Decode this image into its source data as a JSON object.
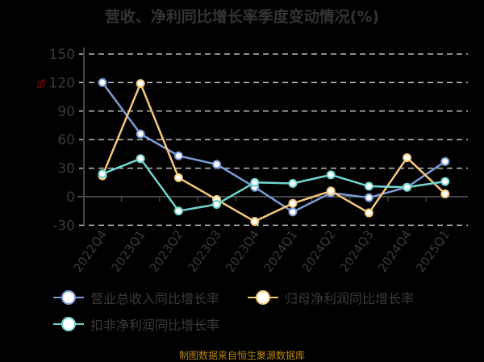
{
  "title": "营收、净利同比增长率季度变动情况(%)",
  "footer": "制图数据来自恒生聚源数据库",
  "colors": {
    "background": "#000000",
    "revenue": "#7b9bd6",
    "net_profit": "#f5c97a",
    "deducted_net_profit": "#6fd6cf",
    "grid": "#bbbbbb",
    "axis_text": "#3a3a3a",
    "unit_label": "#b00000",
    "footer": "#b8860b"
  },
  "chart_data": {
    "type": "line",
    "title": "营收、净利同比增长率季度变动情况(%)",
    "xlabel": "",
    "ylabel": "%",
    "categories": [
      "2022Q4",
      "2023Q1",
      "2023Q2",
      "2023Q3",
      "2023Q4",
      "2024Q1",
      "2024Q2",
      "2024Q3",
      "2024Q4",
      "2025Q1"
    ],
    "yticks": [
      150,
      120,
      90,
      60,
      30,
      0,
      -30
    ],
    "ylim": [
      -30,
      150
    ],
    "grid": true,
    "legend_position": "bottom",
    "series": [
      {
        "name": "营业总收入同比增长率",
        "color": "#7b9bd6",
        "values": [
          120,
          66,
          43,
          34,
          10,
          -16,
          4,
          -1,
          10,
          37
        ]
      },
      {
        "name": "归母净利润同比增长率",
        "color": "#f5c97a",
        "values": [
          22,
          119,
          20,
          -3,
          -26,
          -7,
          6,
          -17,
          41,
          3
        ]
      },
      {
        "name": "扣非净利润同比增长率",
        "color": "#6fd6cf",
        "values": [
          24,
          40,
          -15,
          -8,
          15,
          14,
          23,
          11,
          10,
          16
        ]
      }
    ]
  },
  "legend": {
    "items": [
      {
        "label": "营业总收入同比增长率"
      },
      {
        "label": "归母净利润同比增长率"
      },
      {
        "label": "扣非净利润同比增长率"
      }
    ]
  },
  "axis": {
    "unit": "%"
  }
}
